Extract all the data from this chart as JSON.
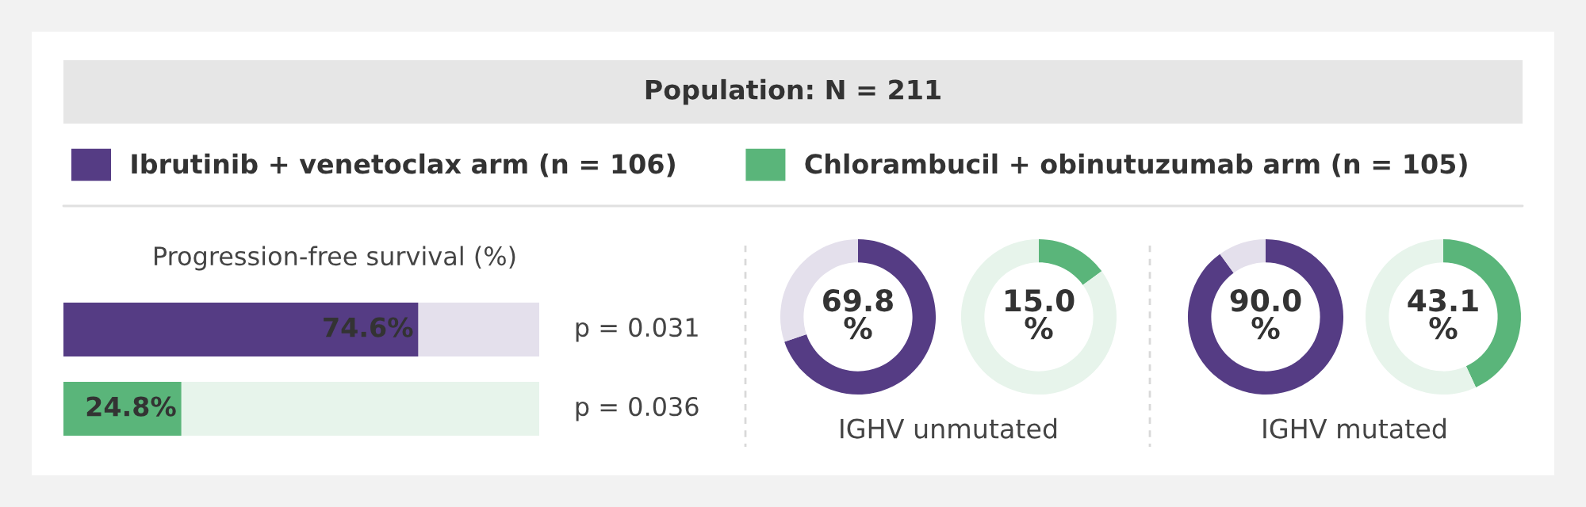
{
  "chart_data": [
    {
      "type": "other",
      "title": "Population: N = 211"
    },
    {
      "type": "bar",
      "orientation": "horizontal",
      "stacked": true,
      "title": "Progression-free survival (%)",
      "categories": [
        null,
        null
      ],
      "xlim": [
        0,
        100
      ],
      "tick_labels": false,
      "legend": "top",
      "series": [
        {
          "name": "Ibrutinib + venetoclax arm (n = 106)",
          "color": "#553c84",
          "values": [
            74.6,
            null
          ],
          "value_labels": [
            "74.6%",
            null
          ]
        },
        {
          "name": "Chlorambucil + obinutuzumab arm (n = 105)",
          "color": "#5ab57a",
          "values": [
            null,
            24.8
          ],
          "value_labels": [
            null,
            "24.8%"
          ]
        },
        {
          "colors": [
            "#e4e0ec",
            "#e7f4eb"
          ],
          "values": [
            25.4,
            75.2
          ]
        }
      ],
      "annotations": [
        "p = 0.031",
        "p = 0.036"
      ]
    },
    {
      "type": "donut",
      "categories": [
        null,
        null
      ],
      "values": [
        69.8,
        30.2
      ],
      "colors": [
        "#553c84",
        "#e4e0ec"
      ],
      "value_labels": [
        "69.8\n%",
        null
      ],
      "xlabel": "IGHV unmutated"
    },
    {
      "type": "donut",
      "categories": [
        null,
        null
      ],
      "values": [
        15.0,
        85.0
      ],
      "colors": [
        "#5ab57a",
        "#e7f4eb"
      ],
      "value_labels": [
        "15.0\n%",
        null
      ]
    },
    {
      "type": "donut",
      "categories": [
        null,
        null
      ],
      "values": [
        90.0,
        10.0
      ],
      "colors": [
        "#553c84",
        "#e4e0ec"
      ],
      "value_labels": [
        "90.0\n%",
        null
      ],
      "xlabel": "IGHV mutated"
    },
    {
      "type": "donut",
      "categories": [
        null,
        null
      ],
      "values": [
        43.1,
        56.9
      ],
      "colors": [
        "#5ab57a",
        "#e7f4eb"
      ],
      "value_labels": [
        "43.1\n%",
        null
      ]
    }
  ]
}
